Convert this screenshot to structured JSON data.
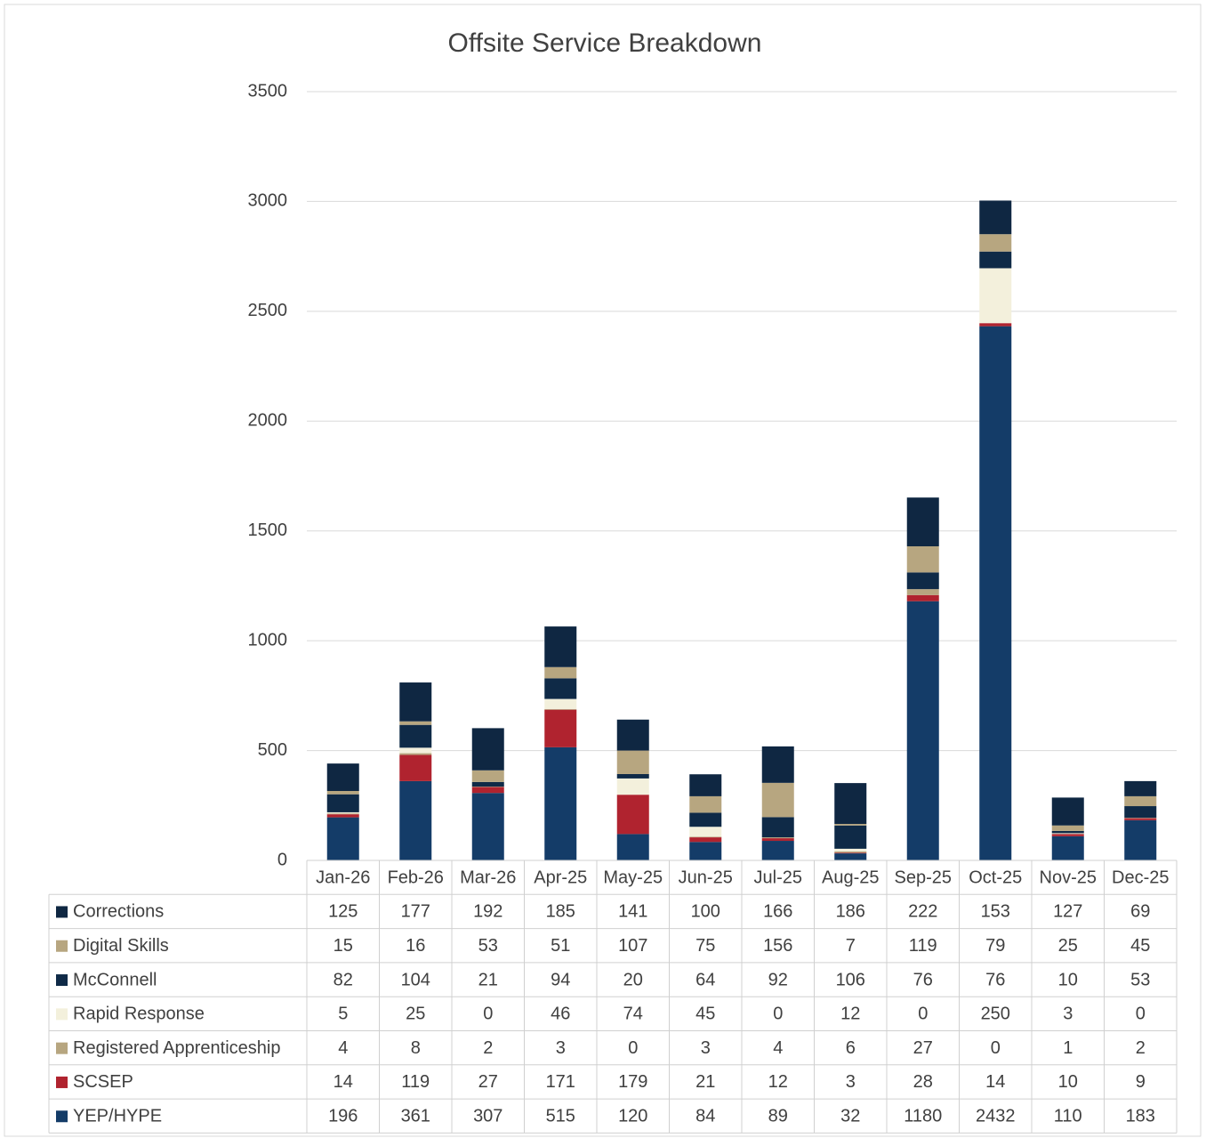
{
  "chart_data": {
    "type": "stacked_bar",
    "title": "Offsite Service Breakdown",
    "categories": [
      "Jan-26",
      "Feb-26",
      "Mar-26",
      "Apr-25",
      "May-25",
      "Jun-25",
      "Jul-25",
      "Aug-25",
      "Sep-25",
      "Oct-25",
      "Nov-25",
      "Dec-25"
    ],
    "series": [
      {
        "name": "YEP/HYPE",
        "color": "#143c68",
        "values": [
          196,
          361,
          307,
          515,
          120,
          84,
          89,
          32,
          1180,
          2432,
          110,
          183
        ]
      },
      {
        "name": "SCSEP",
        "color": "#b0232f",
        "values": [
          14,
          119,
          27,
          171,
          179,
          21,
          12,
          3,
          28,
          14,
          10,
          9
        ]
      },
      {
        "name": "Registered Apprenticeship",
        "color": "#b7a680",
        "values": [
          4,
          8,
          2,
          3,
          0,
          3,
          4,
          6,
          27,
          0,
          1,
          2
        ]
      },
      {
        "name": "Rapid Response",
        "color": "#f3f0dc",
        "values": [
          5,
          25,
          0,
          46,
          74,
          45,
          0,
          12,
          0,
          250,
          3,
          0
        ]
      },
      {
        "name": "McConnell",
        "color": "#0f2a47",
        "values": [
          82,
          104,
          21,
          94,
          20,
          64,
          92,
          106,
          76,
          76,
          10,
          53
        ]
      },
      {
        "name": "Digital Skills",
        "color": "#b7a680",
        "values": [
          15,
          16,
          53,
          51,
          107,
          75,
          156,
          7,
          119,
          79,
          25,
          45
        ]
      },
      {
        "name": "Corrections",
        "color": "#0f2742",
        "values": [
          125,
          177,
          192,
          185,
          141,
          100,
          166,
          186,
          222,
          153,
          127,
          69
        ]
      }
    ],
    "ylim": [
      0,
      3500
    ],
    "yticks": [
      0,
      500,
      1000,
      1500,
      2000,
      2500,
      3000,
      3500
    ],
    "grid": true
  }
}
